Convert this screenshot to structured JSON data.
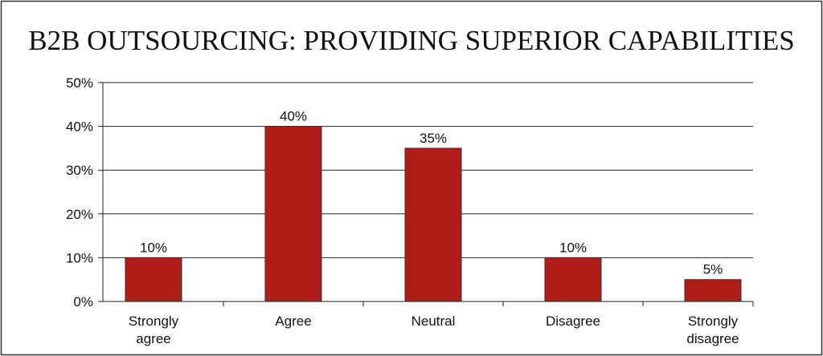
{
  "chart_data": {
    "type": "bar",
    "title": "B2B OUTSOURCING: PROVIDING SUPERIOR CAPABILITIES",
    "categories": [
      "Strongly agree",
      "Agree",
      "Neutral",
      "Disagree",
      "Strongly disagree"
    ],
    "values": [
      10,
      40,
      35,
      10,
      5
    ],
    "value_labels": [
      "10%",
      "40%",
      "35%",
      "10%",
      "5%"
    ],
    "color": "#b01c18",
    "ylim": [
      0,
      50
    ],
    "yticks": [
      {
        "value": 0,
        "label": "0%"
      },
      {
        "value": 10,
        "label": "10%"
      },
      {
        "value": 20,
        "label": "20%"
      },
      {
        "value": 30,
        "label": "30%"
      },
      {
        "value": 40,
        "label": "40%"
      },
      {
        "value": 50,
        "label": "50%"
      }
    ],
    "grid": true
  }
}
